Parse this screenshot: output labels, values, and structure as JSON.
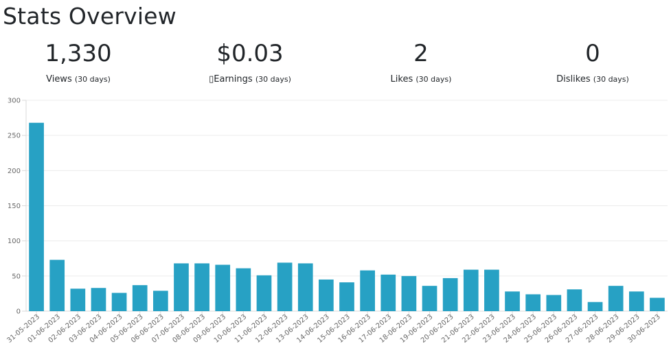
{
  "page": {
    "title": "Stats Overview"
  },
  "stats": [
    {
      "value": "1,330",
      "label": "Views",
      "period": "(30 days)"
    },
    {
      "value": "$0.03",
      "label": "▯Earnings",
      "period": "(30 days)"
    },
    {
      "value": "2",
      "label": "Likes",
      "period": "(30 days)"
    },
    {
      "value": "0",
      "label": "Dislikes",
      "period": "(30 days)"
    }
  ],
  "chart_data": {
    "type": "bar",
    "categories": [
      "31-05-2023",
      "01-06-2023",
      "02-06-2023",
      "03-06-2023",
      "04-06-2023",
      "05-06-2023",
      "06-06-2023",
      "07-06-2023",
      "08-06-2023",
      "09-06-2023",
      "10-06-2023",
      "11-06-2023",
      "12-06-2023",
      "13-06-2023",
      "14-06-2023",
      "15-06-2023",
      "16-06-2023",
      "17-06-2023",
      "18-06-2023",
      "19-06-2023",
      "20-06-2023",
      "21-06-2023",
      "22-06-2023",
      "23-06-2023",
      "24-06-2023",
      "25-06-2023",
      "26-06-2023",
      "27-06-2023",
      "28-06-2023",
      "29-06-2023",
      "30-06-2023"
    ],
    "values": [
      268,
      73,
      32,
      33,
      26,
      37,
      29,
      68,
      68,
      66,
      61,
      51,
      69,
      68,
      45,
      41,
      58,
      52,
      50,
      36,
      47,
      59,
      59,
      28,
      24,
      23,
      31,
      13,
      36,
      28,
      19
    ],
    "yticks": [
      0,
      50,
      100,
      150,
      200,
      250,
      300
    ],
    "ylim": [
      0,
      300
    ],
    "color": "#27a1c4",
    "grid": true
  }
}
